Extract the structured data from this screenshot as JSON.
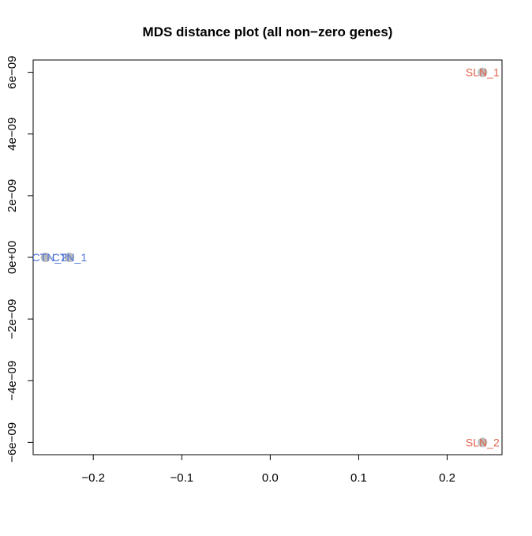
{
  "chart_data": {
    "type": "scatter",
    "title": "MDS distance plot (all non−zero genes)",
    "xlabel": "",
    "ylabel": "",
    "xlim": [
      -0.268,
      0.262
    ],
    "ylim": [
      -6.4e-09,
      6.4e-09
    ],
    "x_ticks": [
      {
        "value": -0.2,
        "label": "−0.2"
      },
      {
        "value": -0.1,
        "label": "−0.1"
      },
      {
        "value": 0.0,
        "label": "0.0"
      },
      {
        "value": 0.1,
        "label": "0.1"
      },
      {
        "value": 0.2,
        "label": "0.2"
      }
    ],
    "y_ticks": [
      {
        "value": -6e-09,
        "label": "−6e−09"
      },
      {
        "value": -4e-09,
        "label": "−4e−09"
      },
      {
        "value": -2e-09,
        "label": "−2e−09"
      },
      {
        "value": 0,
        "label": "0e+00"
      },
      {
        "value": 2e-09,
        "label": "2e−09"
      },
      {
        "value": 4e-09,
        "label": "4e−09"
      },
      {
        "value": 6e-09,
        "label": "6e−09"
      }
    ],
    "point_color": "#bdbdbd",
    "points": [
      {
        "label": "NCTN_2",
        "x": -0.254,
        "y": 0,
        "color": "#4f74d9"
      },
      {
        "label": "CTN_1",
        "x": -0.227,
        "y": 0,
        "color": "#4f74d9"
      },
      {
        "label": "SLN_1",
        "x": 0.24,
        "y": 6e-09,
        "color": "#e0664f"
      },
      {
        "label": "SLN_2",
        "x": 0.24,
        "y": -6e-09,
        "color": "#e0664f"
      }
    ],
    "grid": false,
    "legend": "none"
  }
}
